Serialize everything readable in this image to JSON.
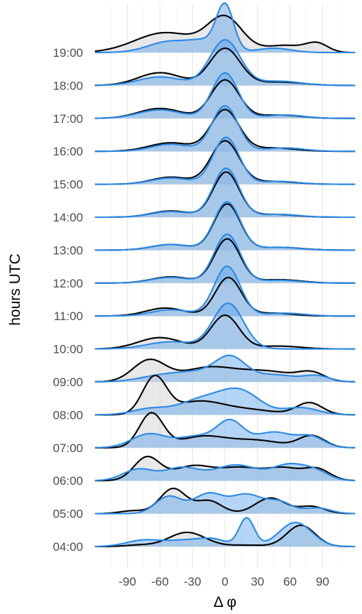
{
  "chart_data": {
    "type": "ridgeline",
    "xlabel": "Δ φ",
    "ylabel": "hours UTC",
    "xlim": [
      -120,
      120
    ],
    "x_ticks": [
      -90,
      -60,
      -30,
      0,
      30,
      60,
      90
    ],
    "x_tick_labels": [
      "-90",
      "-60",
      "-30",
      "0",
      "30",
      "60",
      "90"
    ],
    "categories": [
      "04:00",
      "05:00",
      "06:00",
      "07:00",
      "08:00",
      "09:00",
      "10:00",
      "11:00",
      "12:00",
      "13:00",
      "14:00",
      "15:00",
      "16:00",
      "17:00",
      "18:00",
      "19:00"
    ],
    "grid": true,
    "legend": "none",
    "colors": {
      "series_a_line": "#000000",
      "series_a_fill": "#d9d9d9",
      "series_b_line": "#2b8ae6",
      "series_b_fill": "#5aa2ea",
      "gridline": "#ebebeb"
    },
    "series": [
      {
        "color": "#000000",
        "peaks": [
          [
            [
              -35,
              0.5,
              17
            ],
            [
              20,
              0.05,
              15
            ],
            [
              70,
              0.75,
              13
            ],
            [
              -80,
              0.05,
              12
            ]
          ],
          [
            [
              -48,
              0.88,
              12
            ],
            [
              -15,
              0.45,
              12
            ],
            [
              42,
              0.55,
              14
            ],
            [
              80,
              0.25,
              12
            ],
            [
              -85,
              0.1,
              12
            ]
          ],
          [
            [
              -72,
              0.82,
              12
            ],
            [
              -30,
              0.5,
              18
            ],
            [
              15,
              0.45,
              20
            ],
            [
              55,
              0.4,
              15
            ],
            [
              85,
              0.4,
              12
            ]
          ],
          [
            [
              -68,
              1.2,
              11
            ],
            [
              -20,
              0.4,
              22
            ],
            [
              30,
              0.25,
              22
            ],
            [
              80,
              0.42,
              12
            ]
          ],
          [
            [
              -65,
              1.3,
              11
            ],
            [
              -25,
              0.45,
              22
            ],
            [
              20,
              0.18,
              25
            ],
            [
              78,
              0.42,
              12
            ]
          ],
          [
            [
              -70,
              0.75,
              15
            ],
            [
              -15,
              0.5,
              25
            ],
            [
              40,
              0.35,
              25
            ],
            [
              80,
              0.28,
              12
            ]
          ],
          [
            [
              -60,
              0.4,
              20
            ],
            [
              0,
              1.18,
              13
            ],
            [
              50,
              0.1,
              20
            ]
          ],
          [
            [
              -55,
              0.28,
              18
            ],
            [
              3,
              1.35,
              12
            ],
            [
              45,
              0.1,
              18
            ]
          ],
          [
            [
              -50,
              0.22,
              18
            ],
            [
              2,
              1.55,
              12
            ],
            [
              50,
              0.12,
              20
            ]
          ],
          [
            [
              -50,
              0.2,
              18
            ],
            [
              2,
              1.62,
              12
            ],
            [
              50,
              0.1,
              20
            ]
          ],
          [
            [
              -50,
              0.22,
              18
            ],
            [
              1,
              1.58,
              12
            ],
            [
              45,
              0.1,
              20
            ]
          ],
          [
            [
              -50,
              0.25,
              18
            ],
            [
              0,
              1.52,
              13
            ],
            [
              45,
              0.1,
              20
            ]
          ],
          [
            [
              -50,
              0.3,
              20
            ],
            [
              0,
              1.45,
              13
            ],
            [
              45,
              0.12,
              20
            ]
          ],
          [
            [
              -60,
              0.35,
              20
            ],
            [
              0,
              1.35,
              13
            ],
            [
              50,
              0.12,
              20
            ]
          ],
          [
            [
              -60,
              0.45,
              20
            ],
            [
              0,
              1.3,
              14
            ],
            [
              50,
              0.12,
              22
            ]
          ],
          [
            [
              -55,
              0.7,
              28
            ],
            [
              0,
              1.2,
              16
            ],
            [
              55,
              0.25,
              18
            ],
            [
              85,
              0.3,
              10
            ]
          ]
        ]
      },
      {
        "color": "#2b8ae6",
        "peaks": [
          [
            [
              -75,
              0.22,
              16
            ],
            [
              -35,
              0.22,
              18
            ],
            [
              20,
              1.0,
              7
            ],
            [
              65,
              0.85,
              15
            ],
            [
              -10,
              0.2,
              12
            ]
          ],
          [
            [
              -52,
              0.6,
              12
            ],
            [
              -15,
              0.7,
              14
            ],
            [
              20,
              0.65,
              14
            ],
            [
              50,
              0.4,
              12
            ],
            [
              85,
              0.2,
              12
            ]
          ],
          [
            [
              -80,
              0.4,
              14
            ],
            [
              -40,
              0.45,
              16
            ],
            [
              10,
              0.55,
              20
            ],
            [
              60,
              0.55,
              16
            ],
            [
              85,
              0.25,
              12
            ]
          ],
          [
            [
              -70,
              0.48,
              16
            ],
            [
              -25,
              0.4,
              18
            ],
            [
              5,
              0.85,
              12
            ],
            [
              45,
              0.55,
              18
            ],
            [
              80,
              0.35,
              12
            ]
          ],
          [
            [
              -70,
              0.2,
              16
            ],
            [
              -20,
              0.55,
              22
            ],
            [
              15,
              0.75,
              18
            ],
            [
              70,
              0.25,
              16
            ]
          ],
          [
            [
              -60,
              0.2,
              20
            ],
            [
              -25,
              0.3,
              20
            ],
            [
              5,
              0.8,
              14
            ],
            [
              45,
              0.25,
              20
            ],
            [
              85,
              0.2,
              12
            ]
          ],
          [
            [
              -50,
              0.25,
              22
            ],
            [
              3,
              1.6,
              14
            ]
          ],
          [
            [
              -50,
              0.22,
              18
            ],
            [
              2,
              1.75,
              12
            ],
            [
              55,
              0.1,
              18
            ]
          ],
          [
            [
              -50,
              0.2,
              18
            ],
            [
              2,
              1.72,
              12
            ],
            [
              50,
              0.1,
              18
            ]
          ],
          [
            [
              -50,
              0.2,
              18
            ],
            [
              2,
              1.7,
              12
            ],
            [
              50,
              0.1,
              18
            ]
          ],
          [
            [
              -50,
              0.2,
              18
            ],
            [
              1,
              1.72,
              12
            ],
            [
              50,
              0.1,
              18
            ]
          ],
          [
            [
              -50,
              0.22,
              18
            ],
            [
              1,
              1.65,
              12
            ],
            [
              50,
              0.1,
              18
            ]
          ],
          [
            [
              -50,
              0.25,
              18
            ],
            [
              0,
              1.6,
              12
            ],
            [
              55,
              0.12,
              18
            ]
          ],
          [
            [
              -60,
              0.3,
              20
            ],
            [
              0,
              1.6,
              12
            ],
            [
              55,
              0.12,
              18
            ]
          ],
          [
            [
              -60,
              0.3,
              20
            ],
            [
              0,
              1.6,
              14
            ],
            [
              50,
              0.15,
              20
            ]
          ],
          [
            [
              -50,
              0.4,
              20
            ],
            [
              0,
              1.65,
              8
            ],
            [
              45,
              0.15,
              16
            ],
            [
              -20,
              0.3,
              12
            ]
          ]
        ]
      }
    ]
  }
}
